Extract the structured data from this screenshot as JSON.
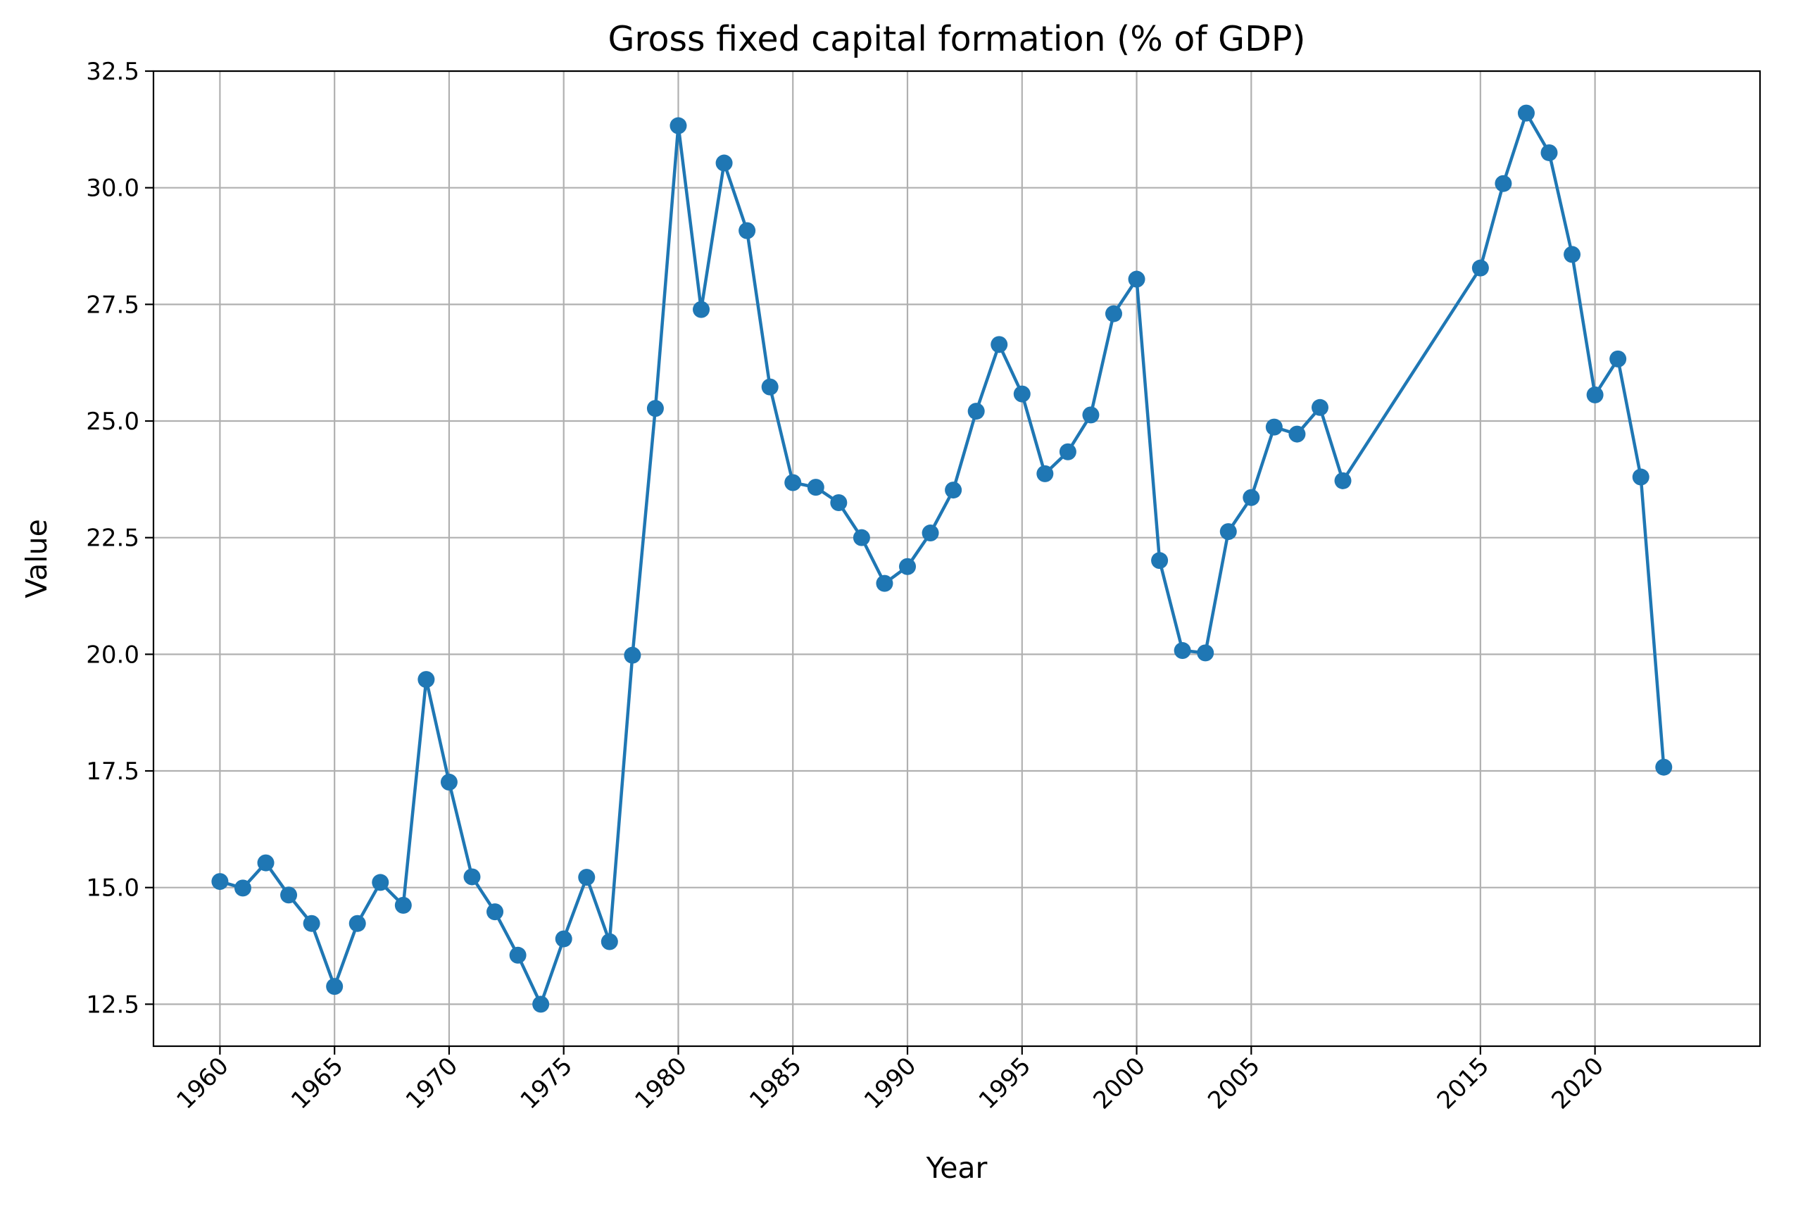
{
  "chart_data": {
    "type": "line",
    "title": "Gross fixed capital formation (% of GDP)",
    "xlabel": "Year",
    "ylabel": "Value",
    "xlim": [
      1957.1,
      2027.2
    ],
    "ylim": [
      11.6,
      32.5
    ],
    "xticks": [
      1960,
      1965,
      1970,
      1975,
      1980,
      1985,
      1990,
      1995,
      2000,
      2005,
      2015,
      2020
    ],
    "xtick_labels": [
      "1960",
      "1965",
      "1970",
      "1975",
      "1980",
      "1985",
      "1990",
      "1995",
      "2000",
      "2005",
      "2015",
      "2020"
    ],
    "yticks": [
      12.5,
      15.0,
      17.5,
      20.0,
      22.5,
      25.0,
      27.5,
      30.0,
      32.5
    ],
    "ytick_labels": [
      "12.5",
      "15.0",
      "17.5",
      "20.0",
      "22.5",
      "25.0",
      "27.5",
      "30.0",
      "32.5"
    ],
    "grid": true,
    "color": "#1f77b4",
    "x": [
      1960,
      1961,
      1962,
      1963,
      1964,
      1965,
      1966,
      1967,
      1968,
      1969,
      1970,
      1971,
      1972,
      1973,
      1974,
      1975,
      1976,
      1977,
      1978,
      1979,
      1980,
      1981,
      1982,
      1983,
      1984,
      1985,
      1986,
      1987,
      1988,
      1989,
      1990,
      1991,
      1992,
      1993,
      1994,
      1995,
      1996,
      1997,
      1998,
      1999,
      2000,
      2001,
      2002,
      2003,
      2004,
      2005,
      2006,
      2007,
      2008,
      2009,
      2015,
      2016,
      2017,
      2018,
      2019,
      2020,
      2021,
      2022,
      2023
    ],
    "values": [
      15.13,
      14.99,
      15.53,
      14.84,
      14.23,
      12.88,
      14.23,
      15.11,
      14.62,
      19.46,
      17.26,
      15.23,
      14.48,
      13.55,
      12.5,
      13.9,
      15.22,
      13.84,
      19.98,
      25.27,
      31.33,
      27.39,
      30.53,
      29.08,
      25.73,
      23.68,
      23.58,
      23.25,
      22.5,
      21.52,
      21.88,
      22.6,
      23.52,
      25.21,
      26.64,
      25.58,
      23.87,
      24.34,
      25.13,
      27.3,
      28.04,
      22.01,
      20.08,
      20.03,
      22.63,
      23.36,
      24.87,
      24.72,
      25.29,
      23.72,
      28.28,
      30.09,
      31.6,
      30.75,
      28.57,
      25.56,
      26.33,
      23.8,
      17.58
    ]
  }
}
